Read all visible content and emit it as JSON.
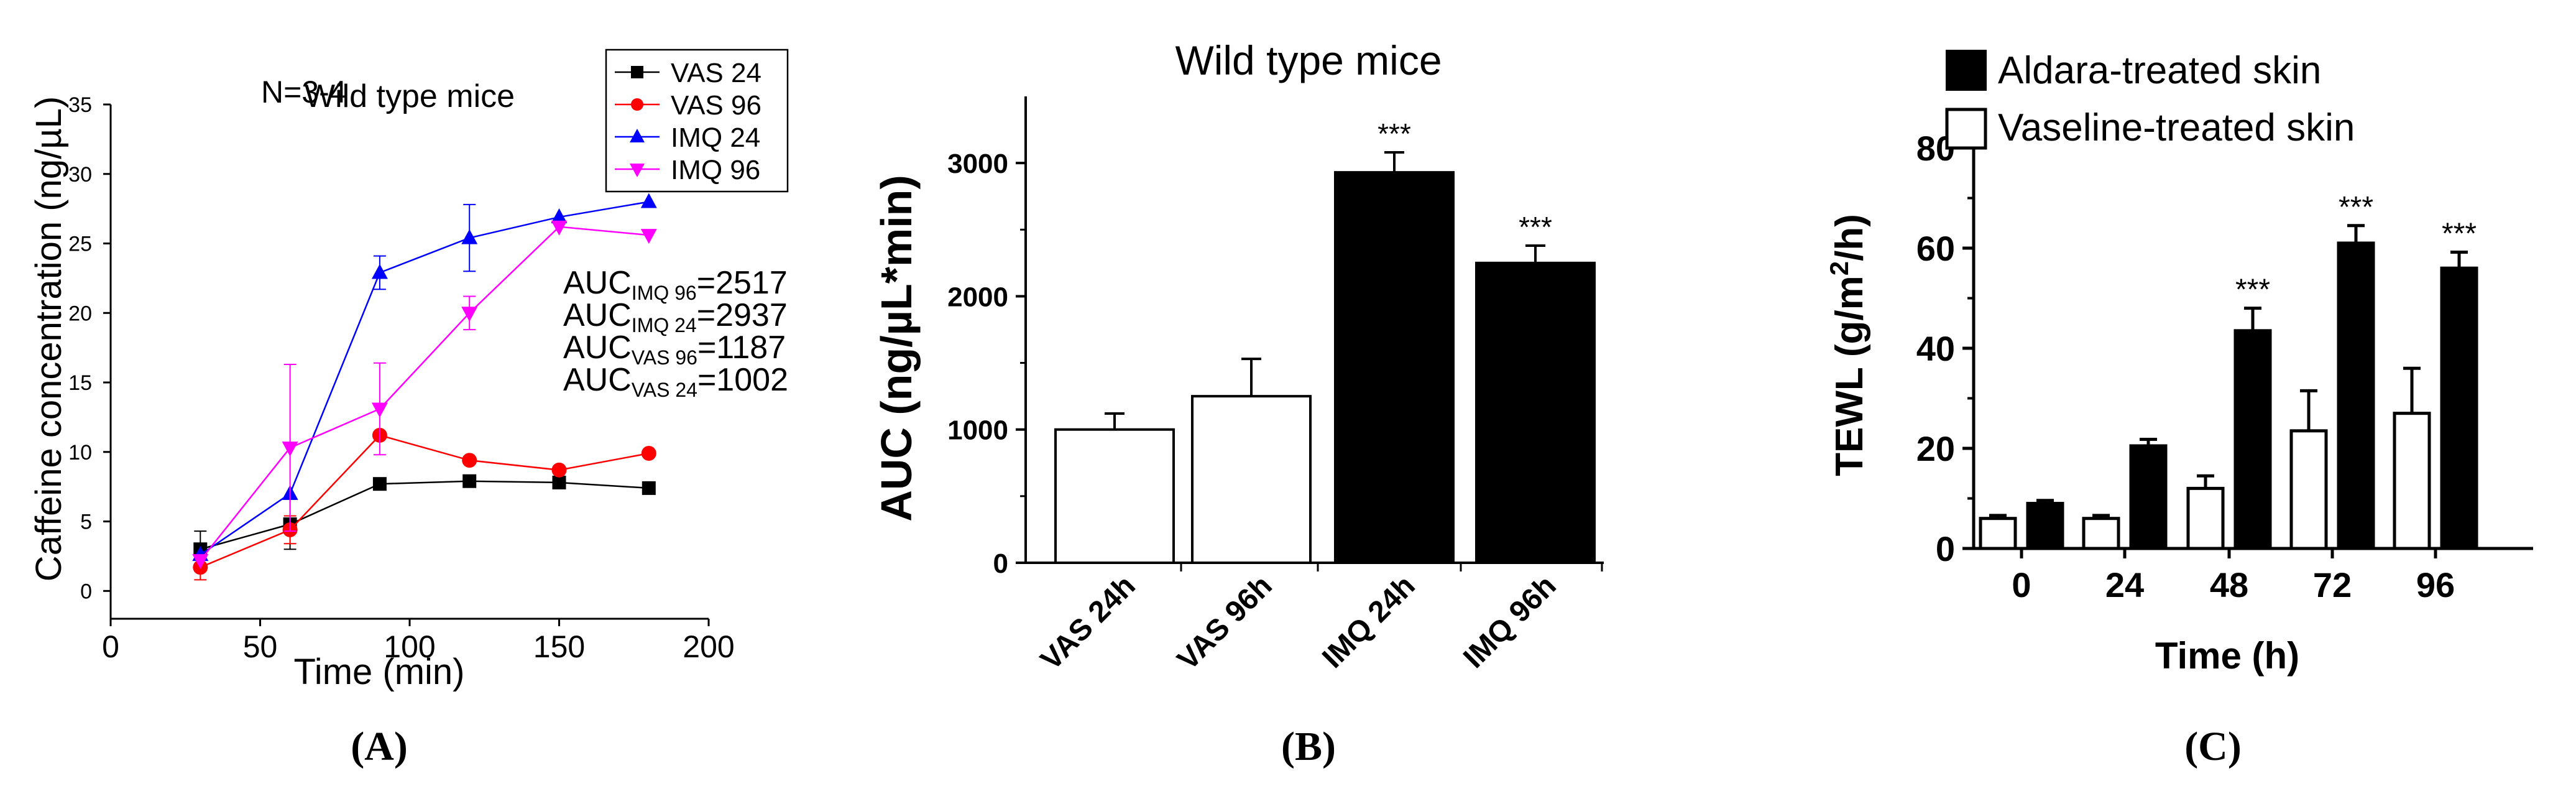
{
  "chart_data": [
    {
      "panel": "A",
      "type": "line",
      "title": "Wild type mice",
      "note": "N=3-4",
      "xlabel": "Time (min)",
      "ylabel": "Caffeine concentration (ng/µL)",
      "xlim": [
        0,
        200
      ],
      "ylim": [
        -2,
        35
      ],
      "xticks": [
        0,
        50,
        100,
        150,
        200
      ],
      "yticks": [
        0,
        5,
        10,
        15,
        20,
        25,
        30,
        35
      ],
      "x": [
        30,
        60,
        90,
        120,
        150,
        180
      ],
      "series": [
        {
          "name": "VAS 24",
          "color": "#000000",
          "marker": "square",
          "values": [
            3.0,
            4.8,
            7.7,
            7.9,
            7.8,
            7.4
          ],
          "errors": [
            1.3,
            1.8,
            0,
            0,
            0,
            0
          ]
        },
        {
          "name": "VAS 96",
          "color": "#ff0000",
          "marker": "circle",
          "values": [
            1.7,
            4.4,
            11.2,
            9.4,
            8.7,
            9.9
          ],
          "errors": [
            0.9,
            1.0,
            0,
            0,
            0,
            0
          ]
        },
        {
          "name": "IMQ 24",
          "color": "#0000ff",
          "marker": "triangle-up",
          "values": [
            2.6,
            7.0,
            22.9,
            25.4,
            26.9,
            28.0
          ],
          "errors": [
            0,
            0,
            1.2,
            2.4,
            0,
            0
          ]
        },
        {
          "name": "IMQ 96",
          "color": "#ff00ff",
          "marker": "triangle-down",
          "values": [
            2.2,
            10.3,
            13.1,
            20.0,
            26.2,
            25.6
          ],
          "errors": [
            0,
            6.0,
            3.3,
            1.2,
            0,
            0
          ]
        }
      ],
      "annotations": [
        {
          "main": "AUC",
          "sub": "IMQ 96",
          "value": "=2517"
        },
        {
          "main": "AUC",
          "sub": "IMQ 24",
          "value": "=2937"
        },
        {
          "main": "AUC",
          "sub": "VAS 96",
          "value": "=1187"
        },
        {
          "main": "AUC",
          "sub": "VAS 24",
          "value": "=1002"
        }
      ],
      "legend": "top-right",
      "caption": "(A)"
    },
    {
      "panel": "B",
      "type": "bar",
      "title": "Wild type mice",
      "xlabel": "",
      "ylabel": "AUC (ng/µL*min)",
      "ylim": [
        0,
        3500
      ],
      "yticks": [
        0,
        1000,
        2000,
        3000
      ],
      "categories": [
        "VAS 24h",
        "VAS 96h",
        "IMQ 24h",
        "IMQ 96h"
      ],
      "values": [
        1000,
        1250,
        2930,
        2250
      ],
      "errors": [
        120,
        280,
        150,
        130
      ],
      "fills": [
        "#ffffff",
        "#ffffff",
        "#000000",
        "#000000"
      ],
      "significance": [
        "",
        "",
        "***",
        "***"
      ],
      "caption": "(B)"
    },
    {
      "panel": "C",
      "type": "bar",
      "title": "",
      "xlabel": "Time (h)",
      "ylabel": "TEWL (g/m2/h)",
      "ylim": [
        0,
        80
      ],
      "yticks": [
        0,
        20,
        40,
        60,
        80
      ],
      "categories": [
        "0",
        "24",
        "48",
        "72",
        "96"
      ],
      "series": [
        {
          "name": "Vaseline-treated skin",
          "fill": "#ffffff",
          "values": [
            6,
            6,
            12,
            23.5,
            27
          ],
          "errors": [
            0.6,
            0.6,
            2.5,
            8,
            9
          ]
        },
        {
          "name": "Aldara-treated skin",
          "fill": "#000000",
          "values": [
            9,
            20.5,
            43.5,
            61,
            56
          ],
          "errors": [
            0.6,
            1.3,
            4.5,
            3.5,
            3.2
          ]
        }
      ],
      "significance": [
        "",
        "",
        "***",
        "***",
        "***"
      ],
      "legend": "top-left",
      "caption": "(C)"
    }
  ]
}
